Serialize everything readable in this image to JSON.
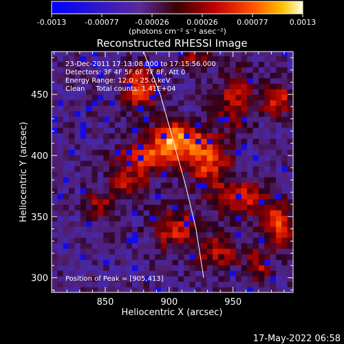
{
  "chart_data": {
    "type": "heatmap",
    "title": "Reconstructed RHESSI Image",
    "xlabel": "Heliocentric X (arcsec)",
    "ylabel": "Heliocentric Y (arcsec)",
    "xlim": [
      808,
      997
    ],
    "ylim": [
      288,
      485
    ],
    "x_ticks": [
      850,
      900,
      950
    ],
    "y_ticks": [
      300,
      350,
      400,
      450
    ],
    "colorbar": {
      "min": -0.0013,
      "max": 0.0013,
      "ticks": [
        "-0.0013",
        "-0.00077",
        "-0.00026",
        "0.00026",
        "0.00077",
        "0.0013"
      ],
      "unit_label": "(photons cm⁻² s⁻¹ asec⁻²)"
    },
    "annotations": [
      "23-Dec-2011 17:13:08.000 to 17:15:56.000",
      "Detectors: 3F 4F 5F 6F 7F 8F, Att 0",
      "Energy Range: 12.0 - 25.0 keV",
      "Clean     Total counts: 1.41E+04"
    ],
    "peak_label": "Position of Peak = [905,413]",
    "peak": {
      "x": 905,
      "y": 413
    },
    "limb_line": [
      [
        880,
        485
      ],
      [
        893,
        450
      ],
      [
        903,
        413
      ],
      [
        913,
        375
      ],
      [
        921,
        340
      ],
      [
        927,
        300
      ]
    ],
    "hot_regions": [
      {
        "x": 905,
        "y": 413,
        "sx": 14,
        "sy": 10,
        "amp": 0.0013
      },
      {
        "x": 878,
        "y": 455,
        "sx": 10,
        "sy": 12,
        "amp": 0.00095
      },
      {
        "x": 882,
        "y": 398,
        "sx": 16,
        "sy": 8,
        "amp": 0.00085
      },
      {
        "x": 868,
        "y": 378,
        "sx": 10,
        "sy": 8,
        "amp": 0.0007
      },
      {
        "x": 930,
        "y": 395,
        "sx": 12,
        "sy": 14,
        "amp": 0.0009
      },
      {
        "x": 955,
        "y": 365,
        "sx": 14,
        "sy": 10,
        "amp": 0.0008
      },
      {
        "x": 985,
        "y": 345,
        "sx": 10,
        "sy": 12,
        "amp": 0.0009
      },
      {
        "x": 952,
        "y": 445,
        "sx": 10,
        "sy": 16,
        "amp": 0.0007
      },
      {
        "x": 985,
        "y": 445,
        "sx": 8,
        "sy": 8,
        "amp": 0.0009
      },
      {
        "x": 905,
        "y": 340,
        "sx": 12,
        "sy": 12,
        "amp": 0.00075
      },
      {
        "x": 938,
        "y": 322,
        "sx": 12,
        "sy": 10,
        "amp": 0.0006
      },
      {
        "x": 970,
        "y": 310,
        "sx": 8,
        "sy": 10,
        "amp": 0.0006
      },
      {
        "x": 845,
        "y": 360,
        "sx": 8,
        "sy": 8,
        "amp": 0.00055
      },
      {
        "x": 920,
        "y": 480,
        "sx": 8,
        "sy": 6,
        "amp": 0.0006
      }
    ],
    "grid": false
  },
  "footer_timestamp": "17-May-2022 06:58"
}
